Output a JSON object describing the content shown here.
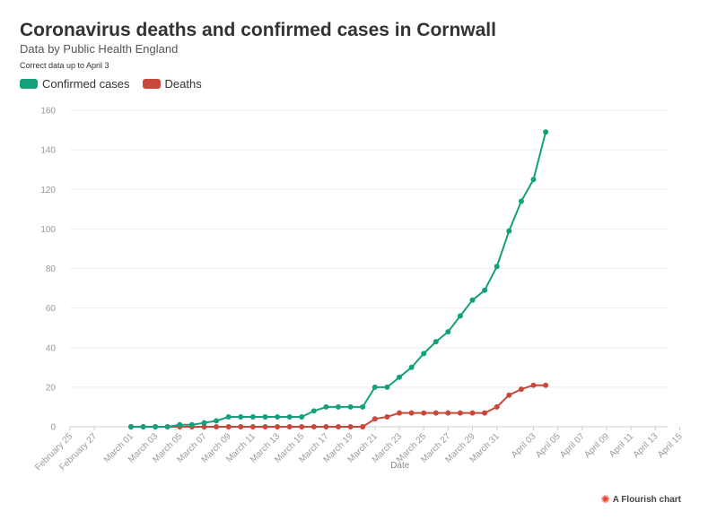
{
  "chart_data": {
    "type": "line",
    "title": "Coronavirus deaths and confirmed cases in Cornwall",
    "subtitle": "Data by Public Health England",
    "note": "Correct data up to April 3",
    "xlabel": "Date",
    "ylabel": "",
    "ylim": [
      0,
      160
    ],
    "yticks": [
      0,
      20,
      40,
      60,
      80,
      100,
      120,
      140,
      160
    ],
    "x_range_days": [
      0,
      49
    ],
    "xtick_labels": [
      "February 25",
      "February 27",
      "March 01",
      "March 03",
      "March 05",
      "March 07",
      "March 09",
      "March 11",
      "March 13",
      "March 15",
      "March 17",
      "March 19",
      "March 21",
      "March 23",
      "March 25",
      "March 27",
      "March 29",
      "March 31",
      "April 03",
      "April 05",
      "April 07",
      "April 09",
      "April 11",
      "April 13",
      "April 15"
    ],
    "xtick_days": [
      0,
      2,
      5,
      7,
      9,
      11,
      13,
      15,
      17,
      19,
      21,
      23,
      25,
      27,
      29,
      31,
      33,
      35,
      38,
      40,
      42,
      44,
      46,
      48,
      50
    ],
    "x_days": [
      5,
      6,
      7,
      8,
      9,
      10,
      11,
      12,
      13,
      14,
      15,
      16,
      17,
      18,
      19,
      20,
      21,
      22,
      23,
      24,
      25,
      26,
      27,
      28,
      29,
      30,
      31,
      32,
      33,
      34,
      35,
      36,
      37,
      38,
      39
    ],
    "series": [
      {
        "name": "Confirmed cases",
        "color": "#13a07a",
        "values": [
          0,
          0,
          0,
          0,
          1,
          1,
          2,
          3,
          5,
          5,
          5,
          5,
          5,
          5,
          5,
          8,
          10,
          10,
          10,
          10,
          20,
          20,
          25,
          30,
          37,
          43,
          48,
          56,
          64,
          69,
          81,
          99,
          114,
          125,
          149
        ]
      },
      {
        "name": "Deaths",
        "color": "#c9483b",
        "values": [
          0,
          0,
          0,
          0,
          0,
          0,
          0,
          0,
          0,
          0,
          0,
          0,
          0,
          0,
          0,
          0,
          0,
          0,
          0,
          0,
          4,
          5,
          7,
          7,
          7,
          7,
          7,
          7,
          7,
          7,
          10,
          16,
          19,
          21,
          21
        ]
      }
    ],
    "legend_position": "top-left",
    "grid": true
  },
  "credit": {
    "icon": "flourish-logo-icon",
    "text": "A Flourish chart"
  }
}
